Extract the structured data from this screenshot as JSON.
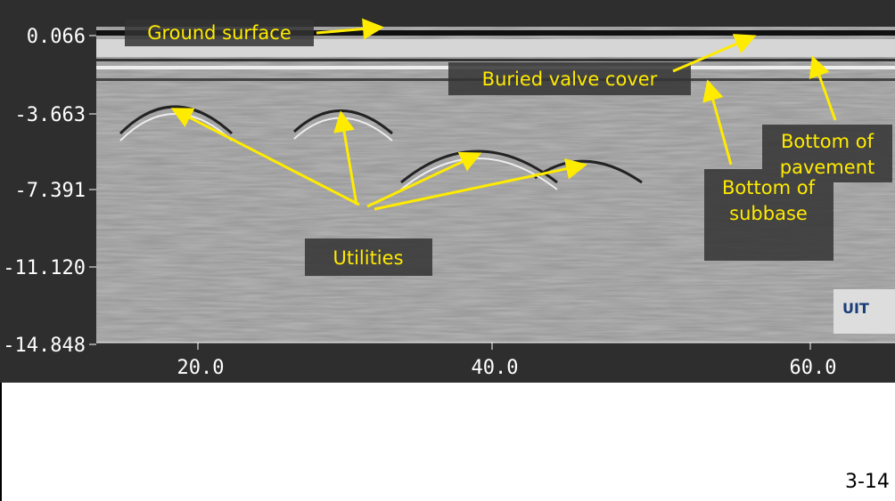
{
  "axes": {
    "y_labels": [
      "0.066",
      "-3.663",
      "-7.391",
      "-11.120",
      "-14.848"
    ],
    "x_labels": [
      "20.0",
      "40.0",
      "60.0"
    ]
  },
  "annotations": [
    {
      "lines": [
        "Ground surface"
      ]
    },
    {
      "lines": [
        "Buried valve cover"
      ]
    },
    {
      "lines": [
        "Bottom of",
        "pavement"
      ]
    },
    {
      "lines": [
        "Bottom of",
        "subbase"
      ]
    },
    {
      "lines": [
        "Utilities"
      ]
    }
  ],
  "logo": "UIT",
  "page_number": "3-14"
}
